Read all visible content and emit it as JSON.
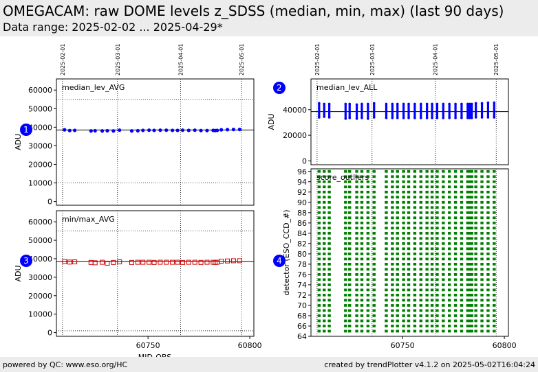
{
  "header": {
    "title": "OMEGACAM: raw DOME levels z_SDSS (median, min, max) (last 90 days)",
    "subtitle": "Data range: 2025-02-02 ... 2025-04-29*"
  },
  "footer": {
    "left": "powered by QC: www.eso.org/HC",
    "right": "created by trendPlotter v4.1.2 on 2025-05-02T16:04:24"
  },
  "colors": {
    "median": "#0000ff",
    "minmax": "#cc0000",
    "outliers": "#008000",
    "badge": "#0000ff"
  },
  "chart_data": [
    {
      "id": "panel1",
      "type": "scatter",
      "badge": "1",
      "label": "median_lev_AVG",
      "ylabel": "ADU",
      "xlabel": "",
      "xlim": [
        60705,
        60802
      ],
      "ylim": [
        -2000,
        66000
      ],
      "yticks": [
        0,
        10000,
        20000,
        30000,
        40000,
        50000,
        60000
      ],
      "ref_lines": [
        {
          "y": 38500,
          "style": "solid"
        },
        {
          "y": 10000,
          "style": "dotted"
        },
        {
          "y": 55000,
          "style": "dotted"
        }
      ],
      "date_ticks": [
        {
          "x": 60708,
          "label": "2025-02-01"
        },
        {
          "x": 60735,
          "label": "2025-03-01"
        },
        {
          "x": 60766,
          "label": "2025-04-01"
        },
        {
          "x": 60796,
          "label": "2025-05-01"
        }
      ],
      "xticks": [],
      "marker": "circle",
      "series": [
        {
          "x": [
            60709,
            60711.5,
            60714,
            60722,
            60724,
            60727.5,
            60730,
            60733,
            60736,
            60742,
            60745,
            60747.5,
            60750.5,
            60753,
            60756,
            60759,
            60762,
            60764.5,
            60767,
            60770,
            60773,
            60776,
            60779,
            60782,
            60783,
            60784,
            60786,
            60789,
            60792,
            60795
          ],
          "y": [
            38600,
            38200,
            38300,
            38000,
            38100,
            38000,
            38100,
            38000,
            38400,
            38000,
            38100,
            38300,
            38400,
            38300,
            38400,
            38400,
            38300,
            38300,
            38400,
            38300,
            38400,
            38200,
            38200,
            38300,
            38200,
            38300,
            38600,
            38700,
            38800,
            38800
          ]
        }
      ]
    },
    {
      "id": "panel3",
      "type": "scatter",
      "badge": "3",
      "label": "min/max_AVG",
      "ylabel": "ADU",
      "xlabel": "MJD-OBS",
      "xlim": [
        60705,
        60802
      ],
      "ylim": [
        -2000,
        66000
      ],
      "yticks": [
        0,
        10000,
        20000,
        30000,
        40000,
        50000,
        60000
      ],
      "ref_lines": [
        {
          "y": 38500,
          "style": "solid"
        },
        {
          "y": 1000,
          "style": "dotted"
        },
        {
          "y": 55000,
          "style": "dotted"
        }
      ],
      "date_ticks": [],
      "xticks": [
        60750,
        60800
      ],
      "marker": "square",
      "series": [
        {
          "x": [
            60709,
            60711.5,
            60714,
            60722,
            60724,
            60727.5,
            60730,
            60733,
            60736,
            60742,
            60745,
            60747.5,
            60750.5,
            60753,
            60756,
            60759,
            60762,
            60764.5,
            60767,
            60770,
            60773,
            60776,
            60779,
            60782,
            60783,
            60784,
            60786,
            60789,
            60792,
            60795
          ],
          "y": [
            38500,
            38200,
            38300,
            38000,
            37800,
            38100,
            37600,
            38000,
            38300,
            38000,
            38100,
            38100,
            38100,
            38000,
            38100,
            38100,
            38100,
            38100,
            38000,
            38100,
            38100,
            38000,
            38100,
            38100,
            38000,
            38100,
            38700,
            38800,
            38900,
            38900
          ]
        }
      ]
    },
    {
      "id": "panel2",
      "type": "scatter",
      "badge": "2",
      "label": "median_lev_ALL",
      "ylabel": "ADU",
      "xlabel": "",
      "xlim": [
        60705,
        60802
      ],
      "ylim": [
        -3000,
        64000
      ],
      "yticks": [
        0,
        20000,
        40000
      ],
      "ref_lines": [
        {
          "y": 38500,
          "style": "solid"
        }
      ],
      "date_ticks": [
        {
          "x": 60708,
          "label": "2025-02-01"
        },
        {
          "x": 60735,
          "label": "2025-03-01"
        },
        {
          "x": 60766,
          "label": "2025-04-01"
        },
        {
          "x": 60796,
          "label": "2025-05-01"
        }
      ],
      "xticks": [],
      "marker": "vbar",
      "series": [
        {
          "x": [
            60709,
            60711.5,
            60714,
            60722,
            60724,
            60727.5,
            60730,
            60733,
            60736,
            60742,
            60745,
            60747.5,
            60750.5,
            60753,
            60756,
            60759,
            60762,
            60764.5,
            60767,
            60770,
            60773,
            60776,
            60779,
            60782,
            60783,
            60784,
            60786,
            60789,
            60792,
            60795
          ],
          "ymin": [
            34000,
            34500,
            34000,
            33000,
            33500,
            33000,
            33500,
            33000,
            34000,
            33500,
            33500,
            33500,
            33500,
            33500,
            33500,
            33500,
            33500,
            33500,
            33500,
            33500,
            33500,
            33500,
            33500,
            33500,
            33500,
            33500,
            34000,
            34000,
            34000,
            34000
          ],
          "ymax": [
            45000,
            44500,
            44500,
            44500,
            44500,
            44000,
            44500,
            44500,
            45000,
            44500,
            44500,
            44500,
            44500,
            44500,
            44500,
            44500,
            44500,
            44500,
            44500,
            44500,
            44500,
            44500,
            44500,
            44500,
            44500,
            44500,
            45000,
            45000,
            45500,
            45500
          ]
        }
      ]
    },
    {
      "id": "panel4",
      "type": "scatter",
      "badge": "4",
      "label": "score_outliers",
      "ylabel": "detector (ESO_CCD_#)",
      "xlabel": "",
      "xlim": [
        60705,
        60802
      ],
      "ylim": [
        64,
        96.5
      ],
      "yticks": [
        64,
        66,
        68,
        70,
        72,
        74,
        76,
        78,
        80,
        82,
        84,
        86,
        88,
        90,
        92,
        94,
        96
      ],
      "ref_lines": [],
      "date_ticks": [],
      "xticks": [
        60750,
        60800
      ],
      "marker": "grid",
      "series": [
        {
          "x": [
            60709,
            60711.5,
            60714,
            60722,
            60724,
            60727.5,
            60730,
            60733,
            60736,
            60742,
            60745,
            60747.5,
            60750.5,
            60753,
            60756,
            60759,
            60762,
            60764.5,
            60767,
            60770,
            60773,
            60776,
            60779,
            60782,
            60783,
            60784,
            60786,
            60789,
            60792,
            60795
          ],
          "y_from": 65,
          "y_to": 96
        }
      ]
    }
  ]
}
